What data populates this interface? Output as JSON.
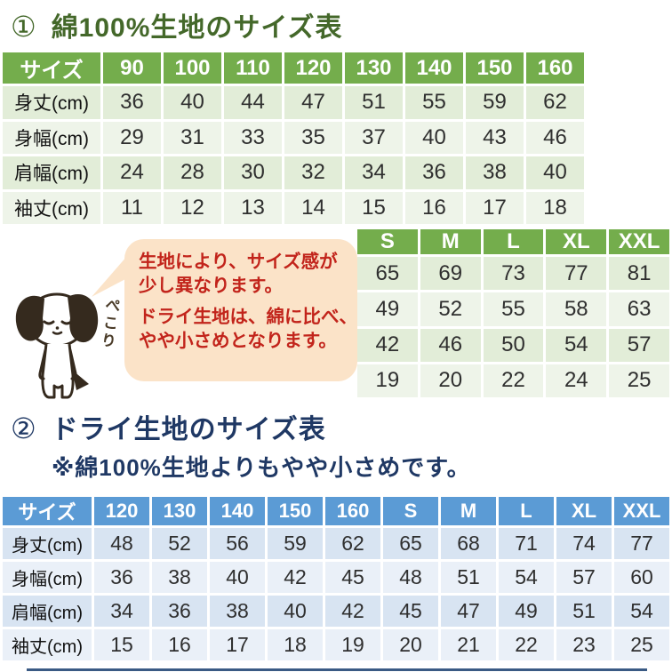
{
  "section1": {
    "number": "①",
    "title": "綿100%生地のサイズ表",
    "title_color": "#44682a",
    "kids_table": {
      "corner_label": "サイズ",
      "columns": [
        "90",
        "100",
        "110",
        "120",
        "130",
        "140",
        "150",
        "160"
      ],
      "rows": [
        {
          "label": "身丈(cm)",
          "values": [
            "36",
            "40",
            "44",
            "47",
            "51",
            "55",
            "59",
            "62"
          ]
        },
        {
          "label": "身幅(cm)",
          "values": [
            "29",
            "31",
            "33",
            "35",
            "37",
            "40",
            "43",
            "46"
          ]
        },
        {
          "label": "肩幅(cm)",
          "values": [
            "24",
            "28",
            "30",
            "32",
            "34",
            "36",
            "38",
            "40"
          ]
        },
        {
          "label": "袖丈(cm)",
          "values": [
            "11",
            "12",
            "13",
            "14",
            "15",
            "16",
            "17",
            "18"
          ]
        }
      ],
      "header_bg": "#74ad4c"
    },
    "adult_table": {
      "columns": [
        "S",
        "M",
        "L",
        "XL",
        "XXL"
      ],
      "rows": [
        [
          "65",
          "69",
          "73",
          "77",
          "81"
        ],
        [
          "49",
          "52",
          "55",
          "58",
          "63"
        ],
        [
          "42",
          "46",
          "50",
          "54",
          "57"
        ],
        [
          "19",
          "20",
          "22",
          "24",
          "25"
        ]
      ],
      "header_bg": "#74ad4c"
    }
  },
  "callout": {
    "pekori": "ぺこり",
    "paragraph1": {
      "line1": "生地により、サイズ感が",
      "line2": "少し異なります。"
    },
    "paragraph2": {
      "line1": "ドライ生地は、綿に比べ、",
      "line2": "やや小さめとなります。"
    },
    "text_color": "#c2241b",
    "bubble_bg": "#fbe3c8"
  },
  "section2": {
    "number": "②",
    "title": "ドライ生地のサイズ表",
    "subtitle": "※綿100%生地よりもやや小さめです。",
    "title_color": "#1f3864",
    "dry_table": {
      "corner_label": "サイズ",
      "columns": [
        "120",
        "130",
        "140",
        "150",
        "160",
        "S",
        "M",
        "L",
        "XL",
        "XXL"
      ],
      "rows": [
        {
          "label": "身丈(cm)",
          "values": [
            "48",
            "52",
            "56",
            "59",
            "62",
            "65",
            "68",
            "71",
            "74",
            "77"
          ]
        },
        {
          "label": "身幅(cm)",
          "values": [
            "36",
            "38",
            "40",
            "42",
            "45",
            "48",
            "51",
            "54",
            "57",
            "60"
          ]
        },
        {
          "label": "肩幅(cm)",
          "values": [
            "34",
            "36",
            "38",
            "40",
            "42",
            "45",
            "47",
            "49",
            "51",
            "54"
          ]
        },
        {
          "label": "袖丈(cm)",
          "values": [
            "15",
            "16",
            "17",
            "18",
            "19",
            "20",
            "21",
            "22",
            "23",
            "25"
          ]
        }
      ],
      "header_bg": "#5b9bd5"
    }
  }
}
